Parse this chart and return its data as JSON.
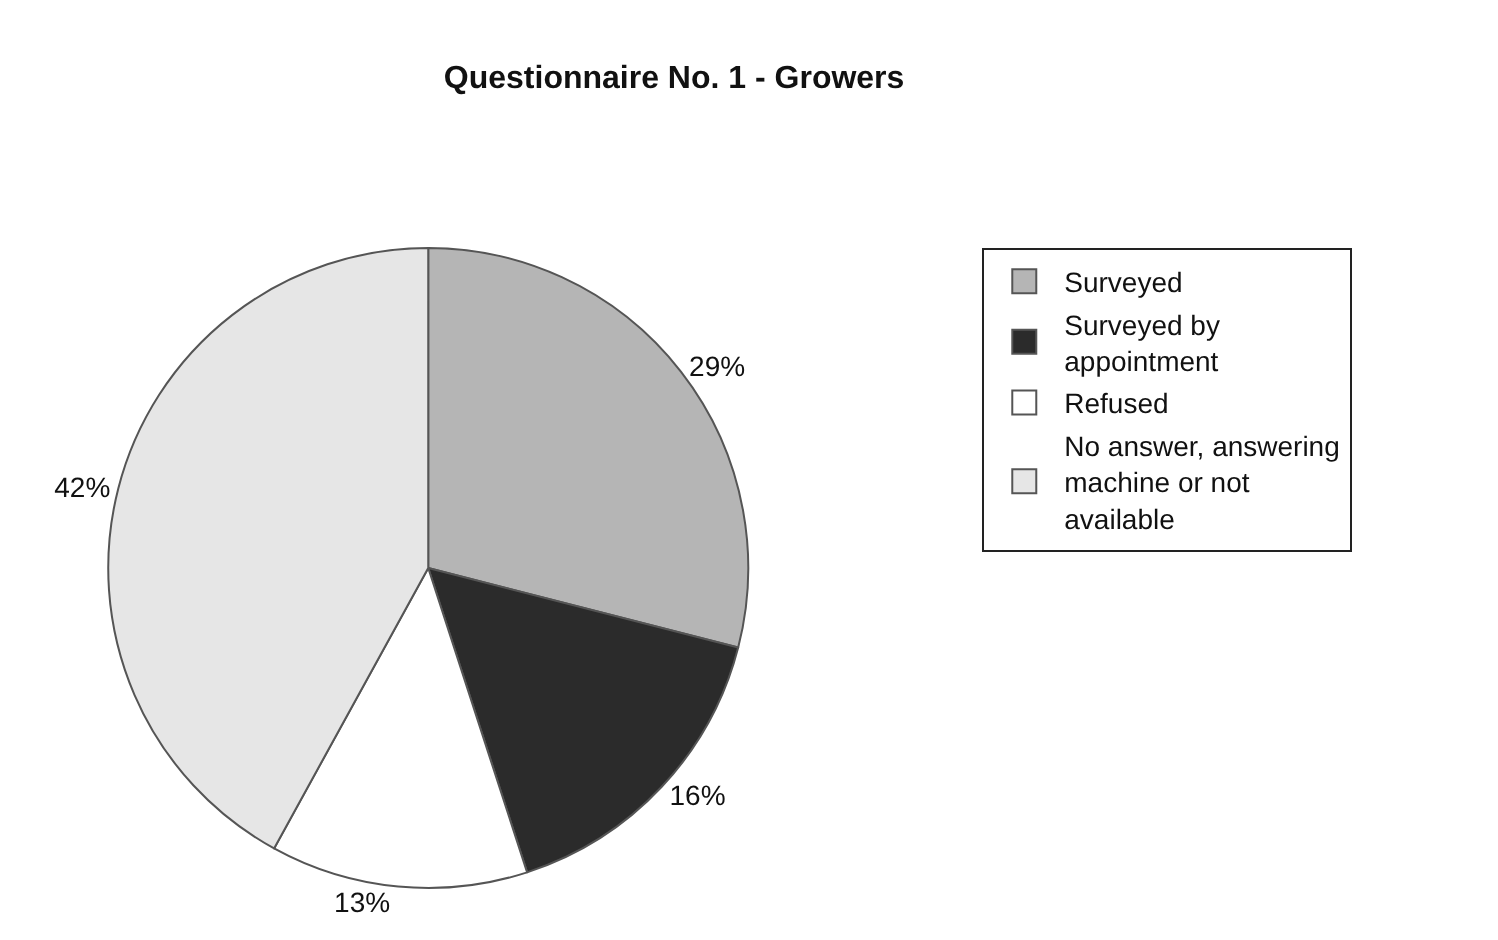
{
  "chart_data": {
    "type": "pie",
    "title": "Questionnaire No. 1 - Growers",
    "categories": [
      "Surveyed",
      "Surveyed by appointment",
      "Refused",
      "No answer, answering machine or not available"
    ],
    "values": [
      29,
      16,
      13,
      42
    ],
    "colors": [
      "#b5b5b5",
      "#2b2b2b",
      "#ffffff",
      "#e6e6e6"
    ],
    "value_labels": [
      "29%",
      "16%",
      "13%",
      "42%"
    ],
    "legend": "right"
  }
}
